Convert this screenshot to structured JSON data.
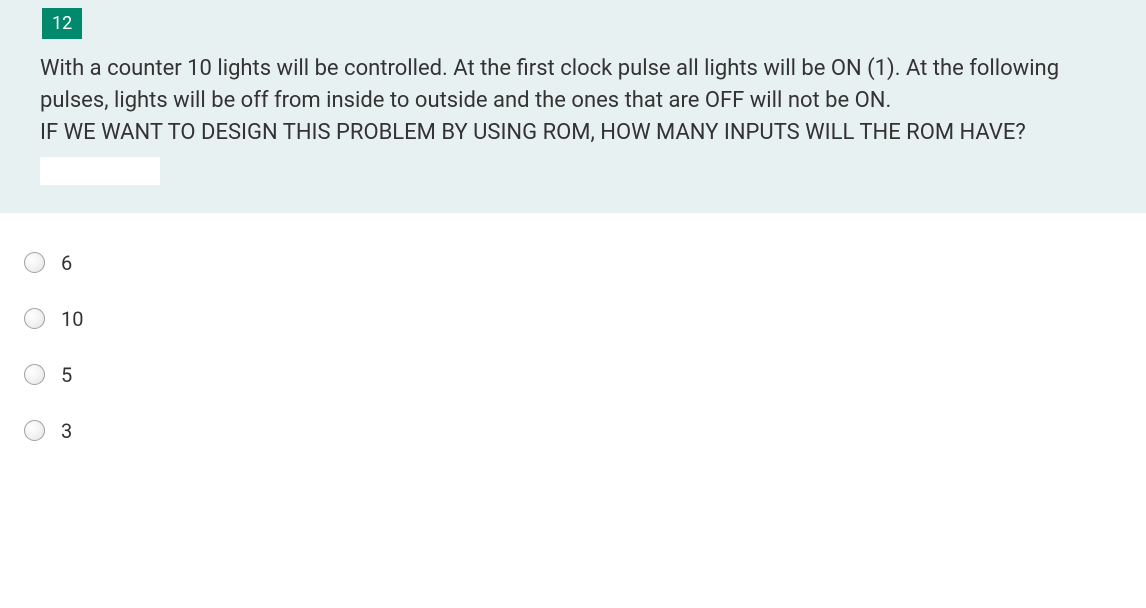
{
  "question": {
    "number": "12",
    "text_line1": "With a counter 10 lights will be controlled. At the first clock pulse all lights will be ON (1). At the following pulses, lights will be off from inside to outside and the ones that are OFF will not be ON.",
    "text_line2": "IF WE WANT TO DESIGN THIS PROBLEM BY USING ROM, HOW MANY INPUTS WILL THE ROM HAVE?",
    "box_background": "#e8f1f1",
    "number_background": "#00896c",
    "number_color": "#ffffff",
    "text_color": "#333333"
  },
  "options": [
    {
      "label": "6"
    },
    {
      "label": "10"
    },
    {
      "label": "5"
    },
    {
      "label": "3"
    }
  ],
  "radio_border_color": "#a0a0a0"
}
